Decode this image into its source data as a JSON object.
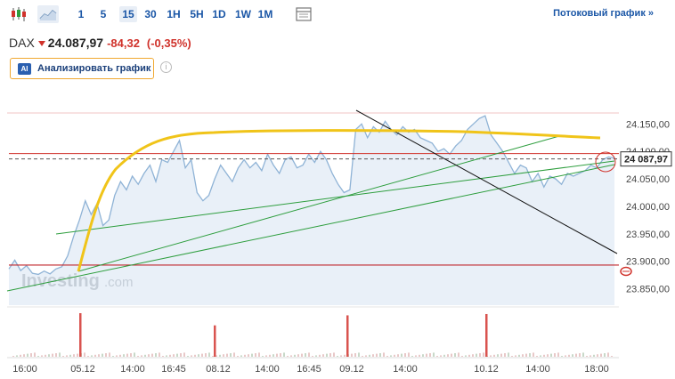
{
  "toolbar": {
    "chart_types": [
      {
        "name": "candles-icon"
      },
      {
        "name": "area-chart-icon"
      }
    ],
    "timeframes": [
      {
        "label": "1",
        "active": false
      },
      {
        "label": "5",
        "active": false
      },
      {
        "label": "15",
        "active": true
      },
      {
        "label": "30",
        "active": false
      },
      {
        "label": "1H",
        "active": false
      },
      {
        "label": "5H",
        "active": false
      },
      {
        "label": "1D",
        "active": false
      },
      {
        "label": "1W",
        "active": false
      },
      {
        "label": "1M",
        "active": false
      }
    ],
    "stream_link": "Потоковый график »"
  },
  "quote": {
    "symbol": "DAX",
    "price": "24.087,97",
    "change": "-84,32",
    "change_pct": "(-0,35%)"
  },
  "analyze": {
    "badge": "AI",
    "label": "Анализировать график",
    "info": "i"
  },
  "watermark": {
    "brand": "Investing",
    "suffix": ".com"
  },
  "colors": {
    "price_line": "#8fb3d6",
    "area_fill": "#e9f0f8",
    "down": "#d0322b",
    "curve": "#f0c419",
    "trend": "#2e9e3e",
    "volume": "#d9534f"
  },
  "chart_data": {
    "type": "area",
    "ylim": [
      23820,
      24170
    ],
    "y_ticks": [
      "24.150,00",
      "24.100,00",
      "24.050,00",
      "24.000,00",
      "23.950,00",
      "23.900,00",
      "23.850,00"
    ],
    "x_ticks": [
      "16:00",
      "05.12",
      "14:00",
      "16:45",
      "08.12",
      "14:00",
      "16:45",
      "09.12",
      "14:00",
      "10.12",
      "14:00",
      "18:00"
    ],
    "current_price_label": "24 087,97",
    "reference_levels": [
      24168,
      24096,
      23893
    ],
    "series": [
      {
        "values": [
          23886,
          23902,
          23883,
          23892,
          23878,
          23876,
          23882,
          23877,
          23886,
          23890,
          23910,
          23945,
          23975,
          24010,
          23985,
          24005,
          23965,
          23975,
          24020,
          24045,
          24030,
          24055,
          24040,
          24060,
          24075,
          24045,
          24085,
          24080,
          24100,
          24120,
          24070,
          24085,
          24025,
          24010,
          24020,
          24050,
          24075,
          24060,
          24045,
          24070,
          24085,
          24070,
          24080,
          24065,
          24095,
          24075,
          24060,
          24085,
          24090,
          24070,
          24075,
          24095,
          24080,
          24100,
          24085,
          24060,
          24040,
          24025,
          24030,
          24140,
          24150,
          24125,
          24145,
          24135,
          24155,
          24140,
          24130,
          24145,
          24135,
          24140,
          24125,
          24120,
          24115,
          24100,
          24105,
          24095,
          24110,
          24120,
          24140,
          24150,
          24160,
          24165,
          24130,
          24115,
          24100,
          24080,
          24060,
          24075,
          24070,
          24045,
          24060,
          24035,
          24055,
          24050,
          24040,
          24060,
          24055,
          24060,
          24065,
          24075,
          24070,
          24085,
          24090,
          24087.97
        ]
      }
    ],
    "volume_spikes": [
      {
        "x_tick": "05.12",
        "height": 1.0
      },
      {
        "x_tick": "08.12",
        "height": 0.72
      },
      {
        "x_tick": "09.12",
        "height": 0.95
      },
      {
        "x_tick": "10.12",
        "height": 0.98
      }
    ]
  }
}
